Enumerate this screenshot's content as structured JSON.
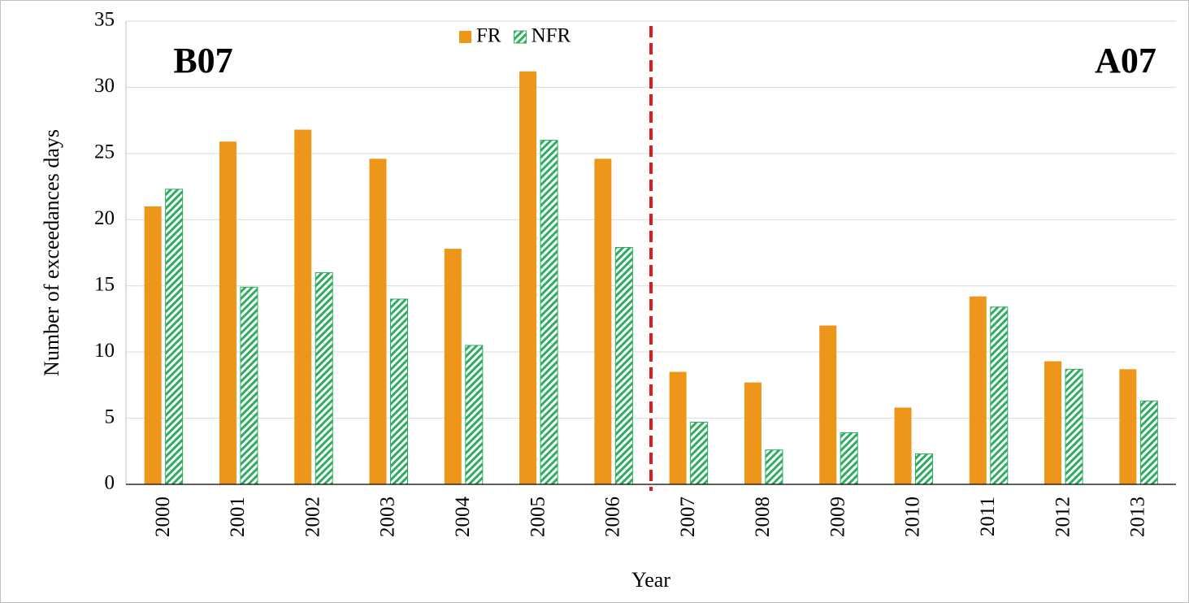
{
  "chart_data": {
    "type": "bar",
    "x_label": "Year",
    "y_label": "Number of exceedances days",
    "annotations": [
      "B07",
      "A07"
    ],
    "categories": [
      "2000",
      "2001",
      "2002",
      "2003",
      "2004",
      "2005",
      "2006",
      "2007",
      "2008",
      "2009",
      "2010",
      "2011",
      "2012",
      "2013"
    ],
    "series": [
      {
        "name": "FR",
        "color": "#ee961a",
        "values": [
          21.0,
          25.9,
          26.8,
          24.6,
          17.8,
          31.2,
          24.6,
          8.5,
          7.7,
          12.0,
          5.8,
          14.2,
          9.3,
          8.7
        ]
      },
      {
        "name": "NFR",
        "color": "#2ead60",
        "pattern": "diagonal-hatch",
        "values": [
          22.3,
          14.9,
          16.0,
          14.0,
          10.5,
          26.0,
          17.9,
          4.7,
          2.6,
          3.9,
          2.3,
          13.4,
          8.7,
          6.3
        ]
      }
    ],
    "ylim": [
      0,
      35
    ],
    "yticks": [
      0,
      5,
      10,
      15,
      20,
      25,
      30,
      35
    ],
    "grid": true
  }
}
